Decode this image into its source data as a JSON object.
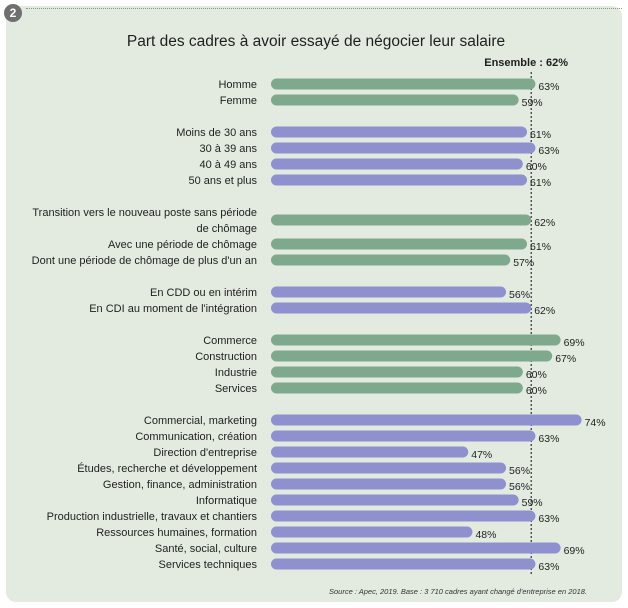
{
  "figure_number": "2",
  "colors": {
    "background": "#e3ebe1",
    "green_bar": "#7ea98c",
    "purple_bar": "#8f91cf",
    "text": "#1f1f1f"
  },
  "chart_data": {
    "type": "bar",
    "orientation": "horizontal",
    "title": "Part des cadres à avoir essayé de négocier leur salaire",
    "reference": {
      "label": "Ensemble : 62%",
      "value": 62
    },
    "value_suffix": "%",
    "xlim": [
      0,
      80
    ],
    "source": "Source : Apec, 2019. Base : 3 710 cadres ayant changé d'entreprise en 2018.",
    "groups": [
      {
        "color": "green",
        "items": [
          {
            "label": [
              "Homme"
            ],
            "value": 63
          },
          {
            "label": [
              "Femme"
            ],
            "value": 59
          }
        ]
      },
      {
        "color": "purple",
        "items": [
          {
            "label": [
              "Moins de 30 ans"
            ],
            "value": 61
          },
          {
            "label": [
              "30 à 39 ans"
            ],
            "value": 63
          },
          {
            "label": [
              "40 à 49 ans"
            ],
            "value": 60
          },
          {
            "label": [
              "50 ans et plus"
            ],
            "value": 61
          }
        ]
      },
      {
        "color": "green",
        "items": [
          {
            "label": [
              "Transition vers le nouveau poste sans période",
              "de chômage"
            ],
            "value": 62
          },
          {
            "label": [
              "Avec une période de chômage"
            ],
            "value": 61
          },
          {
            "label": [
              "Dont une période de chômage de plus d'un an"
            ],
            "value": 57
          }
        ]
      },
      {
        "color": "purple",
        "items": [
          {
            "label": [
              "En CDD ou en intérim"
            ],
            "value": 56
          },
          {
            "label": [
              "En CDI au moment de l'intégration"
            ],
            "value": 62
          }
        ]
      },
      {
        "color": "green",
        "items": [
          {
            "label": [
              "Commerce"
            ],
            "value": 69
          },
          {
            "label": [
              "Construction"
            ],
            "value": 67
          },
          {
            "label": [
              "Industrie"
            ],
            "value": 60
          },
          {
            "label": [
              "Services"
            ],
            "value": 60
          }
        ]
      },
      {
        "color": "purple",
        "items": [
          {
            "label": [
              "Commercial, marketing"
            ],
            "value": 74
          },
          {
            "label": [
              "Communication, création"
            ],
            "value": 63
          },
          {
            "label": [
              "Direction d'entreprise"
            ],
            "value": 47
          },
          {
            "label": [
              "Études, recherche et développement"
            ],
            "value": 56
          },
          {
            "label": [
              "Gestion, finance, administration"
            ],
            "value": 56
          },
          {
            "label": [
              "Informatique"
            ],
            "value": 59
          },
          {
            "label": [
              "Production industrielle, travaux et chantiers"
            ],
            "value": 63
          },
          {
            "label": [
              "Ressources humaines, formation"
            ],
            "value": 48
          },
          {
            "label": [
              "Santé, social, culture"
            ],
            "value": 69
          },
          {
            "label": [
              "Services techniques"
            ],
            "value": 63
          }
        ]
      }
    ]
  }
}
